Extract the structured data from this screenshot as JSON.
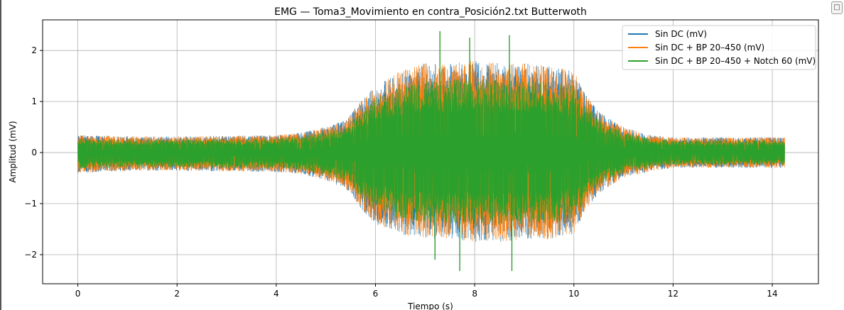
{
  "chart_data": {
    "type": "line",
    "title": "EMG — Toma3_Movimiento en contra_Posición2.txt Butterwoth",
    "xlabel": "Tiempo (s)",
    "ylabel": "Amplitud (mV)",
    "xlim": [
      -0.71,
      14.93
    ],
    "ylim": [
      -2.57,
      2.6
    ],
    "x_ticks": [
      0,
      2,
      4,
      6,
      8,
      10,
      12,
      14
    ],
    "y_ticks": [
      2,
      1,
      0,
      -1,
      -2
    ],
    "y_tick_labels": [
      "2",
      "1",
      "0",
      "−1",
      "−2"
    ],
    "grid": true,
    "legend_position": "top-right",
    "series": [
      {
        "name": "Sin DC (mV)",
        "color": "#1f77b4"
      },
      {
        "name": "Sin DC + BP 20–450 (mV)",
        "color": "#ff7f0e"
      },
      {
        "name": "Sin DC + BP 20–450 + Notch 60 (mV)",
        "color": "#2ca02c"
      }
    ],
    "envelope": {
      "description_values_in_mV": "approximate amplitude envelope vs time (s)",
      "time": [
        0,
        0.5,
        1,
        2,
        3,
        4,
        4.5,
        5,
        5.4,
        5.7,
        6,
        6.5,
        7,
        7.5,
        8,
        8.5,
        9,
        9.5,
        10,
        10.2,
        10.5,
        11,
        11.5,
        12,
        13,
        14,
        14.25
      ],
      "upper": [
        0.35,
        0.33,
        0.32,
        0.32,
        0.33,
        0.34,
        0.4,
        0.5,
        0.65,
        1.0,
        1.3,
        1.6,
        1.75,
        1.75,
        1.8,
        1.75,
        1.75,
        1.7,
        1.6,
        1.2,
        0.8,
        0.5,
        0.35,
        0.3,
        0.3,
        0.3,
        0.3
      ],
      "lower": [
        -0.4,
        -0.38,
        -0.36,
        -0.36,
        -0.37,
        -0.38,
        -0.42,
        -0.55,
        -0.7,
        -1.1,
        -1.4,
        -1.6,
        -1.7,
        -1.7,
        -1.75,
        -1.75,
        -1.7,
        -1.7,
        -1.6,
        -1.2,
        -0.8,
        -0.5,
        -0.38,
        -0.3,
        -0.3,
        -0.3,
        -0.3
      ]
    },
    "peaks": [
      {
        "x": 7.3,
        "y": 2.38
      },
      {
        "x": 7.9,
        "y": 2.25
      },
      {
        "x": 8.7,
        "y": 2.3
      },
      {
        "x": 7.7,
        "y": -2.32
      },
      {
        "x": 8.75,
        "y": -2.32
      },
      {
        "x": 7.2,
        "y": -2.1
      }
    ]
  }
}
